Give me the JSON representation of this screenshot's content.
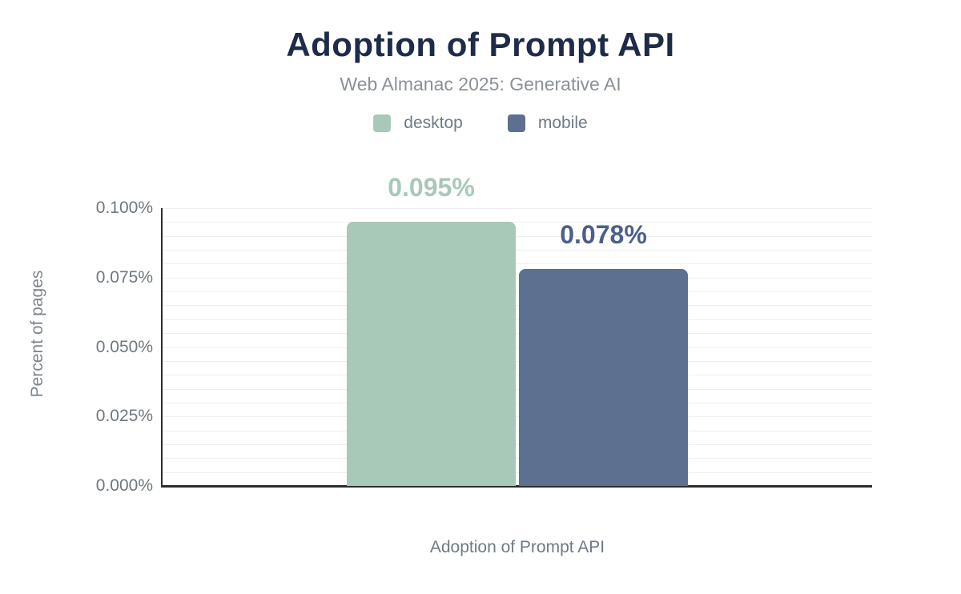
{
  "header": {
    "title": "Adoption of Prompt API",
    "subtitle": "Web Almanac 2025: Generative AI"
  },
  "colors": {
    "title": "#1e2b49",
    "subtitle": "#8a9199",
    "axis": "#2d2d2d",
    "gridline": "#eeeff0",
    "tick_text": "#6f7780",
    "desktop": "#a8c9b8",
    "mobile": "#5e7090",
    "desktop_label": "#a8c9b8",
    "mobile_label": "#4c5f8a"
  },
  "chart_data": {
    "type": "bar",
    "title": "Adoption of Prompt API",
    "subtitle": "Web Almanac 2025: Generative AI",
    "categories": [
      "Adoption of Prompt API"
    ],
    "series": [
      {
        "name": "desktop",
        "values": [
          0.095
        ],
        "data_labels": [
          "0.095%"
        ],
        "color": "#a8c9b8",
        "label_color": "#a8c9b8"
      },
      {
        "name": "mobile",
        "values": [
          0.078
        ],
        "data_labels": [
          "0.078%"
        ],
        "color": "#5e7090",
        "label_color": "#4c5f8a"
      }
    ],
    "xlabel": "Adoption of Prompt API",
    "ylabel": "Percent of pages",
    "ylim": [
      0,
      0.1
    ],
    "y_ticks": [
      {
        "value": 0.0,
        "label": "0.000%"
      },
      {
        "value": 0.025,
        "label": "0.025%"
      },
      {
        "value": 0.05,
        "label": "0.050%"
      },
      {
        "value": 0.075,
        "label": "0.075%"
      },
      {
        "value": 0.1,
        "label": "0.100%"
      }
    ],
    "grid": true,
    "grid_minor_step": 0.005,
    "legend_position": "top",
    "legend": [
      "desktop",
      "mobile"
    ]
  }
}
